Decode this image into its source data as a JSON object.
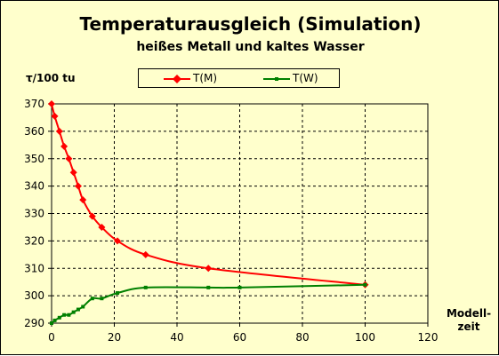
{
  "chart_data": {
    "type": "line",
    "title": "Temperaturausgleich (Simulation)",
    "subtitle": "heißes Metall und kaltes Wasser",
    "ylabel": "τ/100 tu",
    "xlabel_line1": "Modell-",
    "xlabel_line2": "zeit",
    "xlim": [
      0,
      120
    ],
    "ylim": [
      290,
      370
    ],
    "xticks": [
      0,
      20,
      40,
      60,
      80,
      100,
      120
    ],
    "yticks": [
      290,
      300,
      310,
      320,
      330,
      340,
      350,
      360,
      370
    ],
    "grid": true,
    "legend_position": "top",
    "series": [
      {
        "name": "T(M)",
        "color": "#ff0000",
        "marker": "diamond",
        "x": [
          0,
          1,
          2.5,
          4,
          5.5,
          7,
          8.5,
          10,
          13,
          16,
          21,
          30,
          50,
          100
        ],
        "y": [
          370,
          365.5,
          360,
          354.5,
          350,
          345,
          340,
          335,
          329,
          325,
          320,
          315,
          310,
          304
        ]
      },
      {
        "name": "T(W)",
        "color": "#008000",
        "marker": "square",
        "x": [
          0,
          1,
          2.5,
          4,
          5.5,
          7,
          8.5,
          10,
          13,
          16,
          21,
          30,
          50,
          60,
          100
        ],
        "y": [
          290,
          291,
          292,
          293,
          293,
          294,
          295,
          296,
          299,
          299,
          301,
          303,
          303,
          303,
          304
        ]
      }
    ]
  }
}
